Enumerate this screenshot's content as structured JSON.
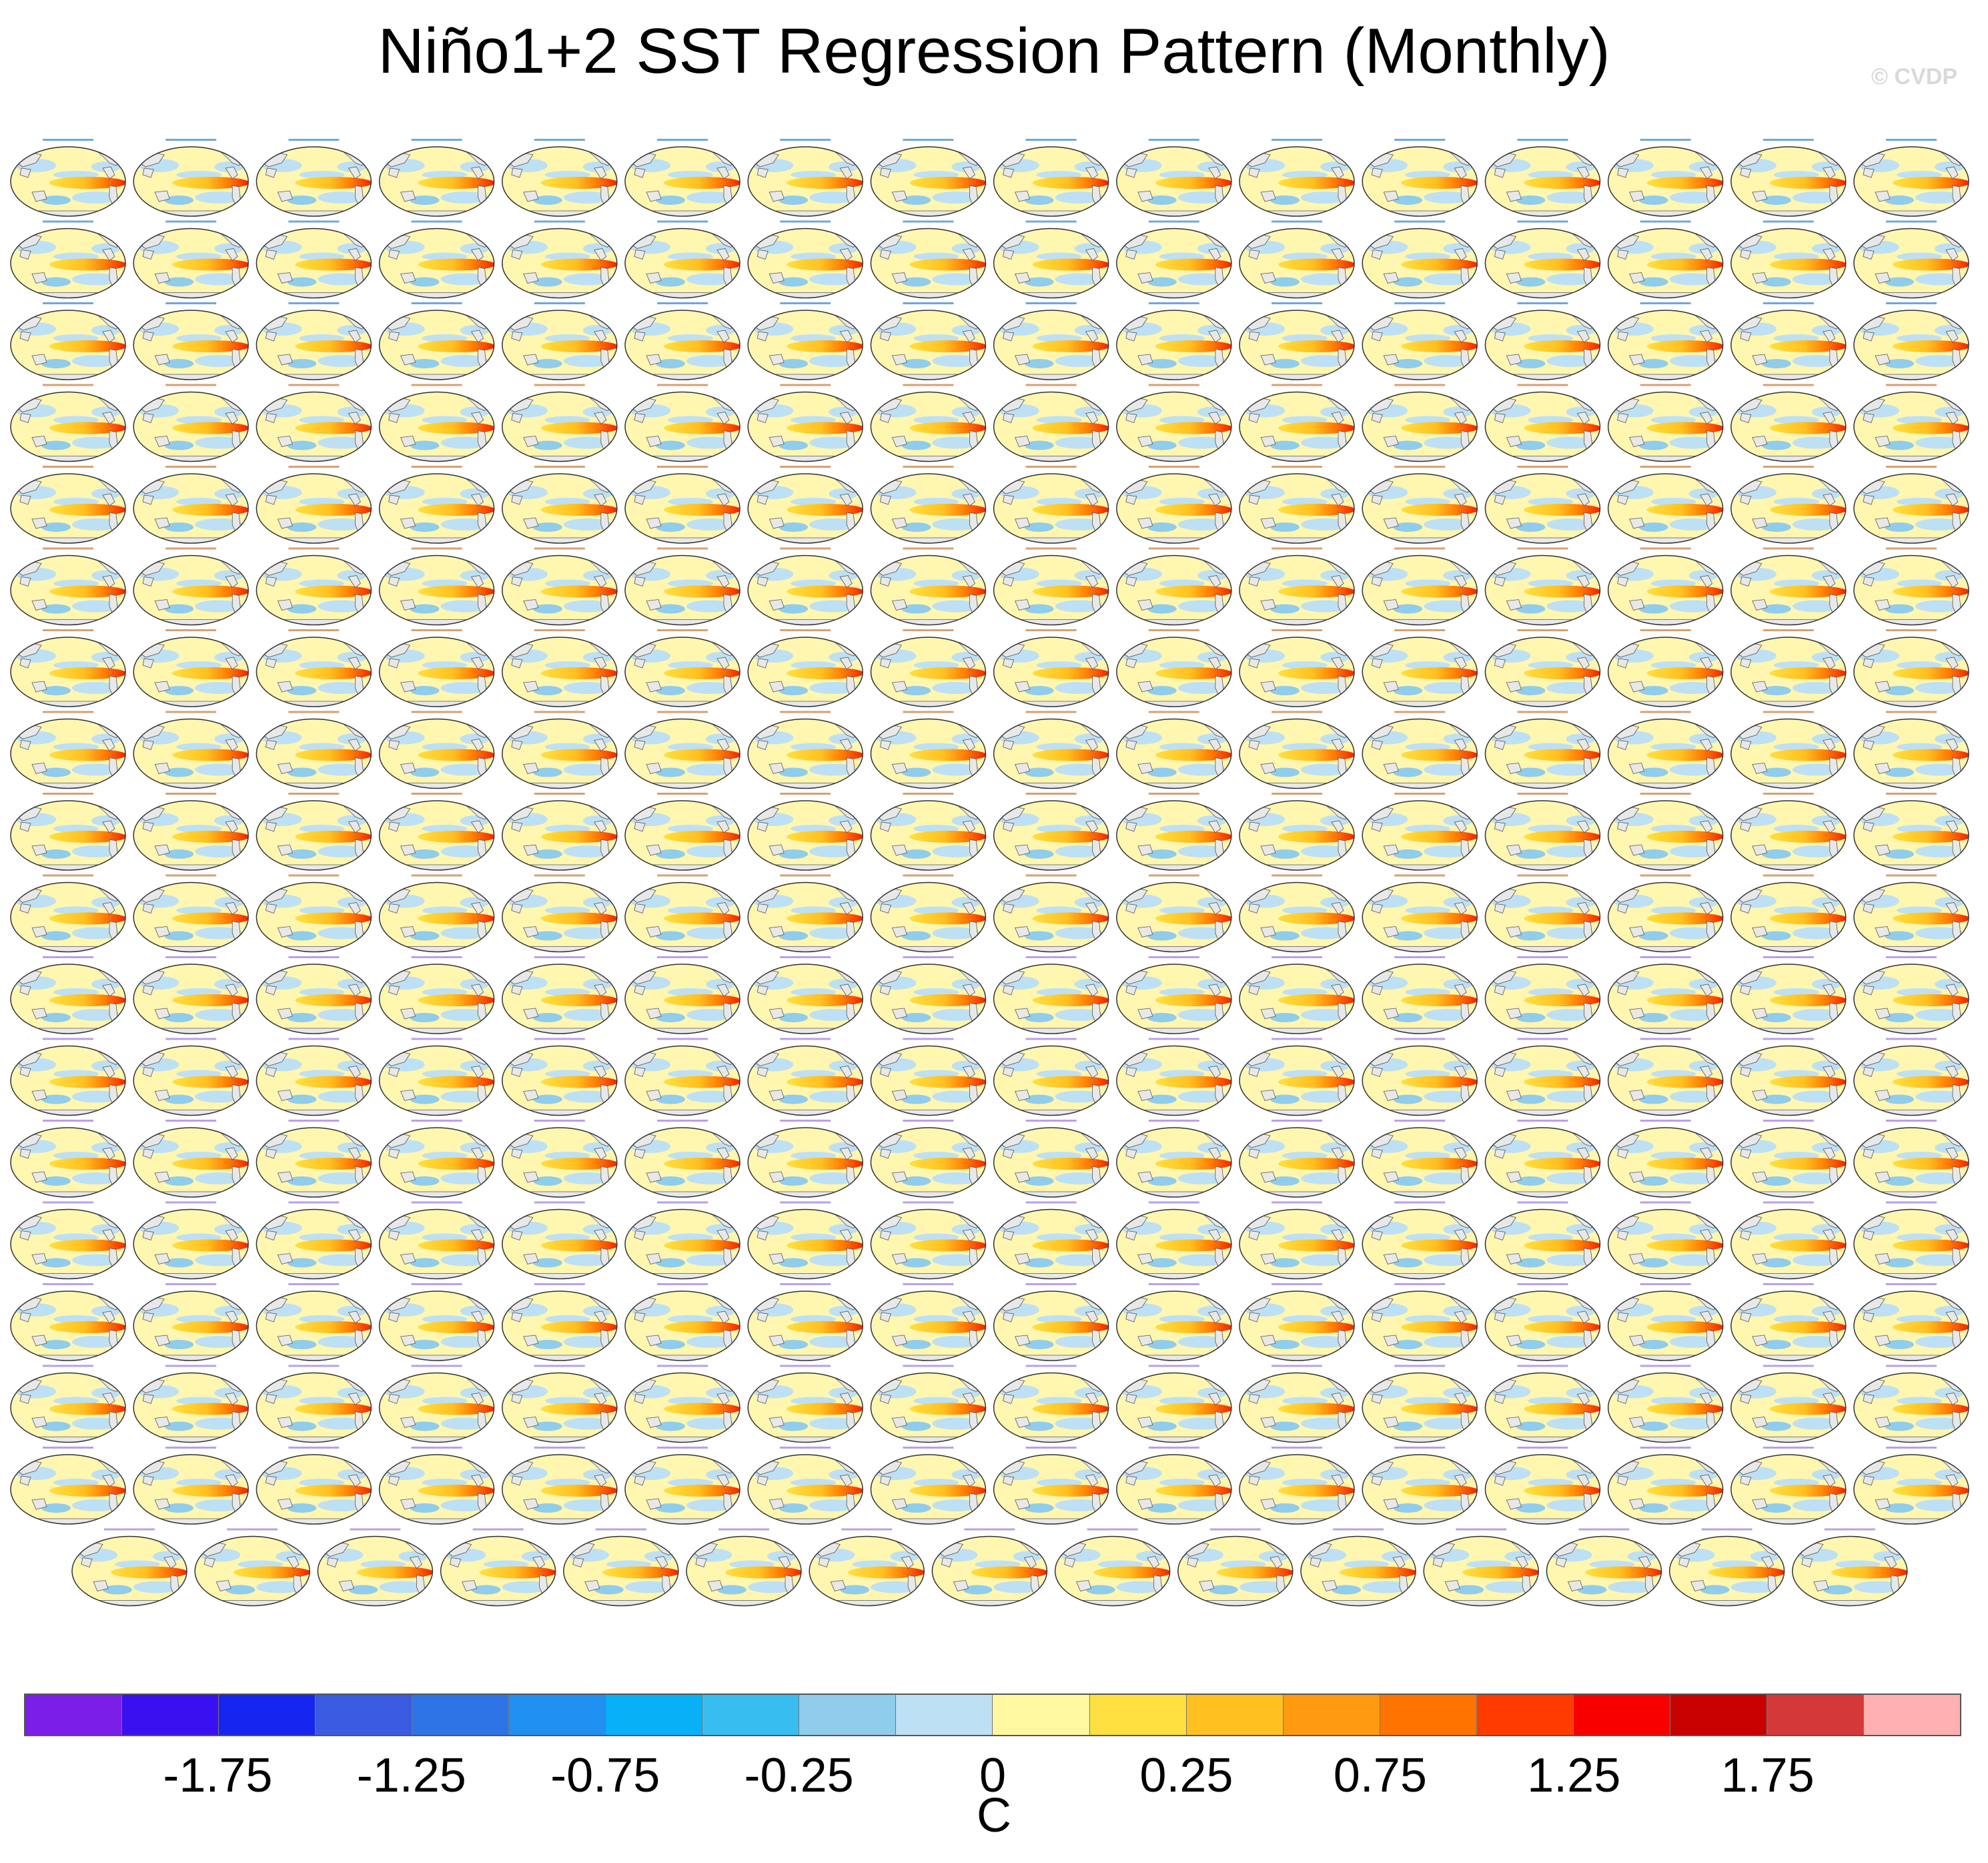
{
  "title": "Niño1+2 SST Regression Pattern (Monthly)",
  "watermark": "© CVDP",
  "grid": {
    "full_rows": 17,
    "columns": 16,
    "last_row_panels": 15,
    "total_panels": 287
  },
  "panel_label_samples": [
    "ERSST v5",
    "HadISST",
    "ACCESS-ESM1-5",
    "CanESM5",
    "CESM1",
    "CESM2",
    "CSIRO-Mk3-6-0"
  ],
  "colormap": {
    "colors": [
      "#7B1FE8",
      "#3A10F0",
      "#1626F0",
      "#3A5BE0",
      "#2E74E6",
      "#2090F2",
      "#08B0F8",
      "#38BDF0",
      "#90CCEC",
      "#BEE0F4",
      "#FFF8A0",
      "#FFE040",
      "#FFC020",
      "#FF9A10",
      "#FF7400",
      "#FF3C00",
      "#F80000",
      "#C80000",
      "#D43838",
      "#FFB0B0"
    ],
    "tick_labels": [
      "-1.75",
      "-1.25",
      "-0.75",
      "-0.25",
      "0",
      "0.25",
      "0.75",
      "1.25",
      "1.75"
    ],
    "units": "C"
  }
}
